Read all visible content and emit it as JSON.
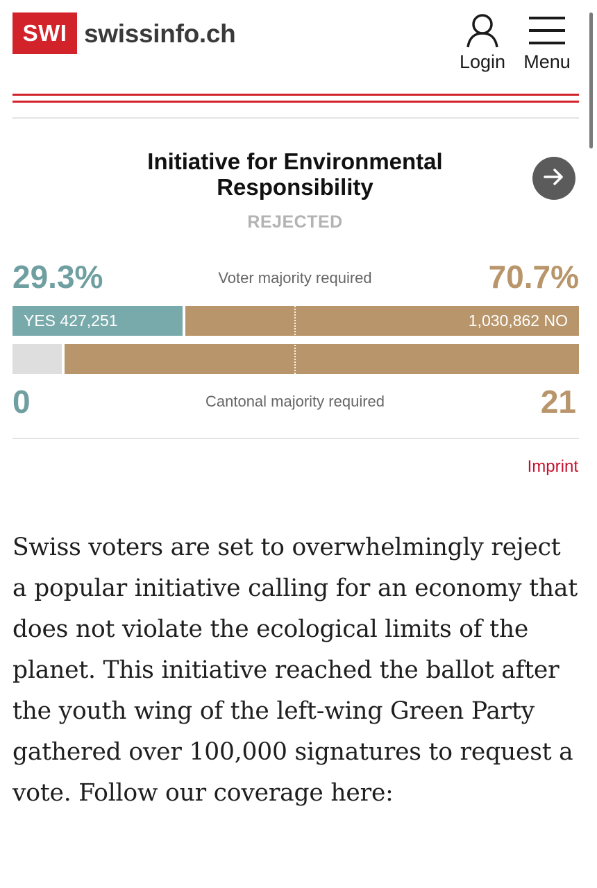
{
  "header": {
    "logo_text": "SWI",
    "site_name": "swissinfo.ch",
    "login_label": "Login",
    "menu_label": "Menu",
    "brand_color": "#d2232a"
  },
  "vote": {
    "title": "Initiative for Environmental Responsibility",
    "status": "REJECTED",
    "yes_percent_label": "29.3%",
    "no_percent_label": "70.7%",
    "yes_percent": 29.3,
    "no_percent": 70.7,
    "voter_majority_label": "Voter majority required",
    "yes_votes_label": "YES 427,251",
    "no_votes_label": "1,030,862 NO",
    "cantonal_majority_label": "Cantonal majority required",
    "yes_cantons": "0",
    "no_cantons": "21",
    "yes_cantons_value": 0,
    "no_cantons_value": 21,
    "pending_cantons_value": 2,
    "colors": {
      "yes": "#79aaab",
      "no": "#b8956a",
      "pending": "#dedede"
    }
  },
  "footer_link": {
    "imprint": "Imprint"
  },
  "article": {
    "body": "Swiss voters are set to overwhelmingly reject a popular initiative calling for an economy that does not violate the ecological limits of the planet. This initiative reached the ballot after the youth wing of the left-wing Green Party gathered over 100,000 signatures to request a vote.  Follow our coverage here:"
  }
}
